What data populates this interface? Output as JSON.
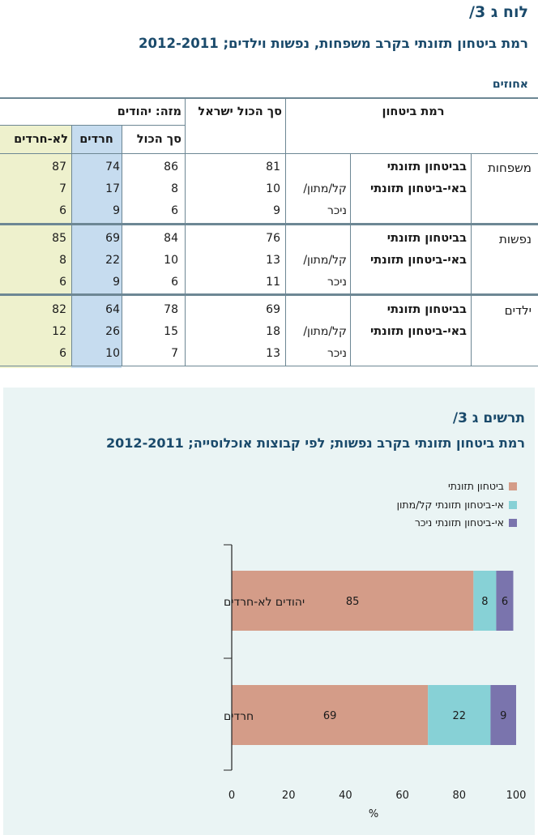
{
  "table": {
    "title": "לוח ג 3/",
    "subtitle": "רמת ביטחון תזונתי בקרב משפחות, נפשות וילדים; 2012-2011",
    "units": "אחוזים",
    "headers": {
      "level": "רמת ביטחון",
      "total_israel": "סך הכול ישראל",
      "of_which": "מזה: יהודים",
      "total": "סך הכול",
      "haredim": "חרדים",
      "non_haredim": "לא-חרדים"
    },
    "level_labels": {
      "secure": "בביטחון תזונתי",
      "insecure": "באי-ביטחון תזונתי",
      "mild": "קל/מתון/",
      "severe": "ניכר"
    },
    "sections": [
      {
        "label": "משפחות",
        "rows": [
          [
            "81",
            "86",
            "74",
            "87"
          ],
          [
            "10",
            "8",
            "17",
            "7"
          ],
          [
            "9",
            "6",
            "9",
            "6"
          ]
        ]
      },
      {
        "label": "נפשות",
        "rows": [
          [
            "76",
            "84",
            "69",
            "85"
          ],
          [
            "13",
            "10",
            "22",
            "8"
          ],
          [
            "11",
            "6",
            "9",
            "6"
          ]
        ]
      },
      {
        "label": "ילדים",
        "rows": [
          [
            "69",
            "78",
            "64",
            "82"
          ],
          [
            "18",
            "15",
            "26",
            "12"
          ],
          [
            "13",
            "7",
            "10",
            "6"
          ]
        ]
      }
    ],
    "colors": {
      "haredim_bg": "#c6dcef",
      "non_haredim_bg": "#eef1cd",
      "rule": "#6d8794"
    }
  },
  "chart": {
    "title": "תרשים ג 3/",
    "subtitle": "רמת ביטחון תזונתי בקרב נפשות; לפי קבוצות אוכלוסייה; 2012-2011"
  },
  "chart_data": {
    "type": "bar",
    "orientation": "horizontal",
    "stacked": true,
    "categories": [
      "יהודים לא-חרדים",
      "חרדים"
    ],
    "series": [
      {
        "name": "ביטחון תזונתי",
        "values": [
          85,
          69
        ],
        "color": "#d49c88"
      },
      {
        "name": "אי-ביטחון תזונתי קל/מתון",
        "values": [
          8,
          22
        ],
        "color": "#87d1d6"
      },
      {
        "name": "אי-ביטחון תזונתי ניכר",
        "values": [
          6,
          9
        ],
        "color": "#7a74ad"
      }
    ],
    "xlabel": "%",
    "xlim": [
      0,
      100
    ],
    "xticks": [
      "0",
      "20",
      "40",
      "60",
      "80",
      "100"
    ],
    "legend_position": "top-right",
    "grid": false
  }
}
